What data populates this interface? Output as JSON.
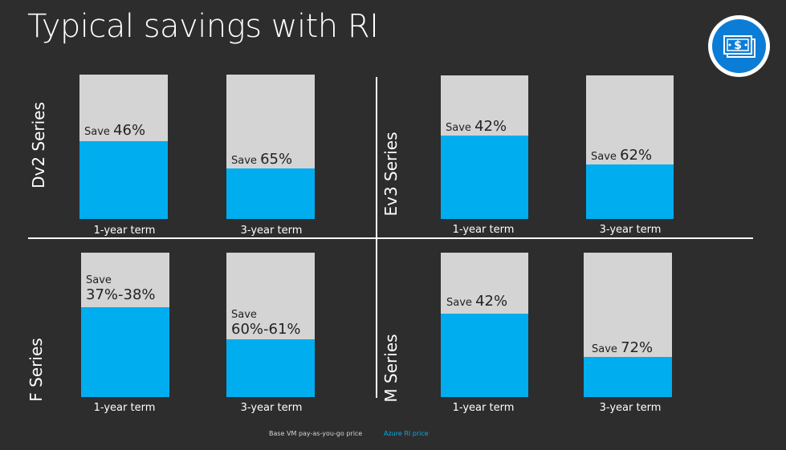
{
  "title": "Typical savings with RI",
  "badge_icon": "money-bill-icon",
  "colors": {
    "background": "#2d2d2e",
    "base": "#d4d4d4",
    "ri": "#00adef",
    "badge": "#0b7dd6"
  },
  "series": {
    "dv2": "Dv2 Series",
    "ev3": "Ev3 Series",
    "f": "F Series",
    "m": "M Series"
  },
  "bars": {
    "dv2_1yr": {
      "save_label": "Save",
      "save_value": "46%",
      "term": "1-year term",
      "ri_fraction": 0.54
    },
    "dv2_3yr": {
      "save_label": "Save",
      "save_value": "65%",
      "term": "3-year term",
      "ri_fraction": 0.35
    },
    "ev3_1yr": {
      "save_label": "Save",
      "save_value": "42%",
      "term": "1-year term",
      "ri_fraction": 0.58
    },
    "ev3_3yr": {
      "save_label": "Save",
      "save_value": "62%",
      "term": "3-year term",
      "ri_fraction": 0.38
    },
    "f_1yr": {
      "save_label": "Save",
      "save_value": "37%-38%",
      "term": "1-year term",
      "ri_fraction": 0.62
    },
    "f_3yr": {
      "save_label": "Save",
      "save_value": "60%-61%",
      "term": "3-year term",
      "ri_fraction": 0.4
    },
    "m_1yr": {
      "save_label": "Save",
      "save_value": "42%",
      "term": "1-year term",
      "ri_fraction": 0.58
    },
    "m_3yr": {
      "save_label": "Save",
      "save_value": "72%",
      "term": "3-year term",
      "ri_fraction": 0.28
    }
  },
  "legend": {
    "base": "Base VM pay-as-you-go price",
    "ri": "Azure RI price"
  }
}
